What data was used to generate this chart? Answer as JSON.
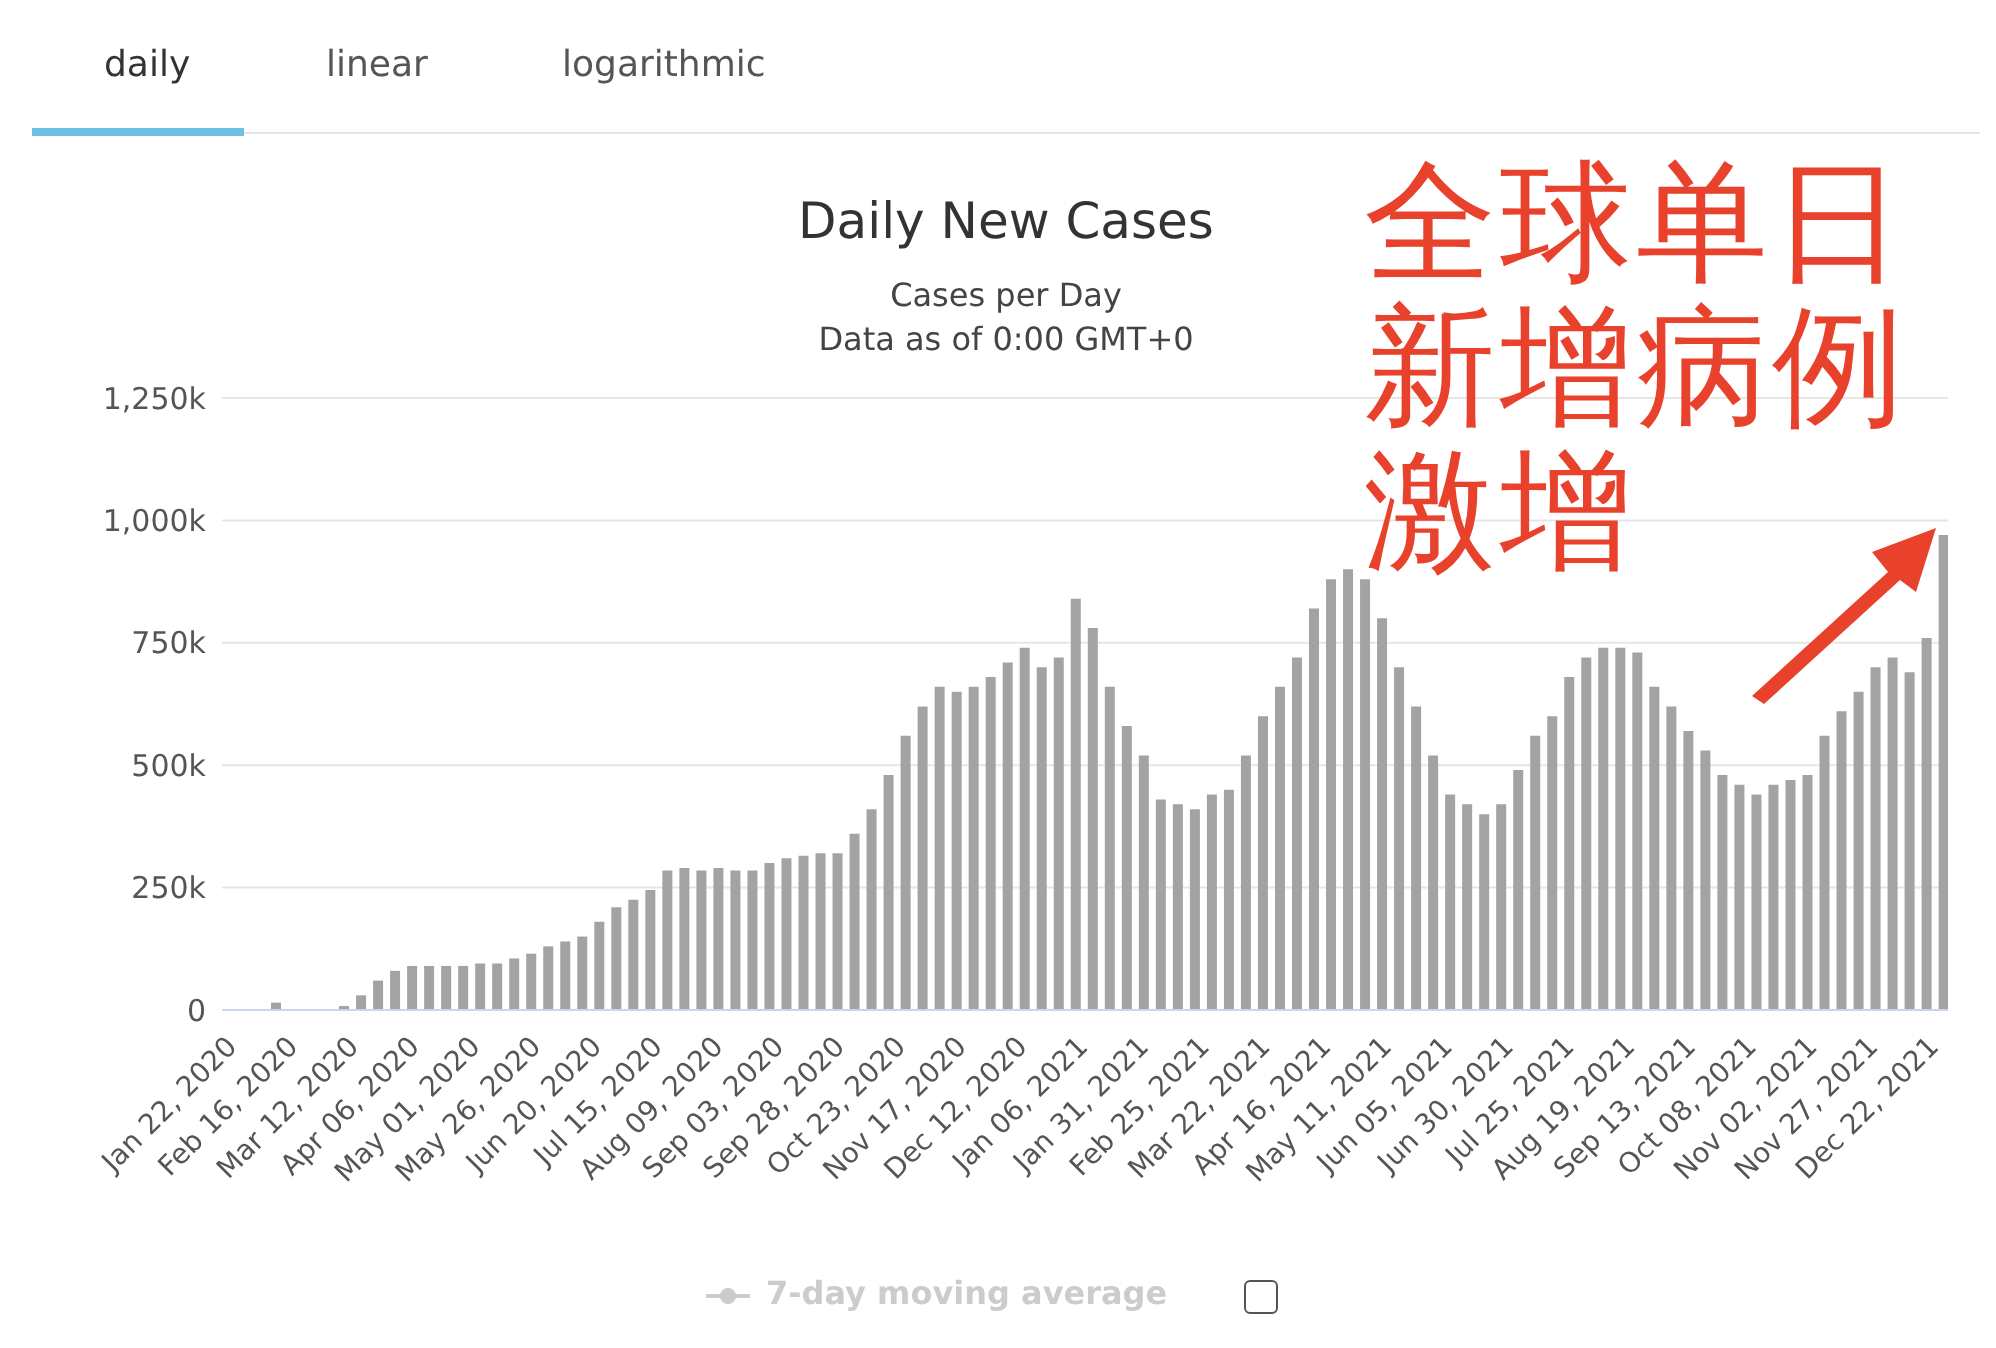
{
  "chart_data": {
    "type": "bar",
    "title": "Daily New Cases",
    "subtitle": "Cases per Day\nData as of 0:00 GMT+0",
    "annotations": [
      "daily",
      "linear",
      "logarithmic",
      "7-day moving average",
      "全球单日新增病例激增"
    ],
    "x": [
      "2020-01-22",
      "2020-01-29",
      "2020-02-05",
      "2020-02-12",
      "2020-02-19",
      "2020-02-26",
      "2020-03-04",
      "2020-03-11",
      "2020-03-18",
      "2020-03-25",
      "2020-04-01",
      "2020-04-08",
      "2020-04-15",
      "2020-04-22",
      "2020-04-29",
      "2020-05-06",
      "2020-05-13",
      "2020-05-20",
      "2020-05-27",
      "2020-06-03",
      "2020-06-10",
      "2020-06-17",
      "2020-06-24",
      "2020-07-01",
      "2020-07-08",
      "2020-07-15",
      "2020-07-22",
      "2020-07-29",
      "2020-08-05",
      "2020-08-12",
      "2020-08-19",
      "2020-08-26",
      "2020-09-02",
      "2020-09-09",
      "2020-09-16",
      "2020-09-23",
      "2020-09-30",
      "2020-10-07",
      "2020-10-14",
      "2020-10-21",
      "2020-10-28",
      "2020-11-04",
      "2020-11-11",
      "2020-11-18",
      "2020-11-25",
      "2020-12-02",
      "2020-12-09",
      "2020-12-16",
      "2020-12-23",
      "2020-12-30",
      "2021-01-06",
      "2021-01-13",
      "2021-01-20",
      "2021-01-27",
      "2021-02-03",
      "2021-02-10",
      "2021-02-17",
      "2021-02-24",
      "2021-03-03",
      "2021-03-10",
      "2021-03-17",
      "2021-03-24",
      "2021-03-31",
      "2021-04-07",
      "2021-04-14",
      "2021-04-21",
      "2021-04-28",
      "2021-05-05",
      "2021-05-12",
      "2021-05-19",
      "2021-05-26",
      "2021-06-02",
      "2021-06-09",
      "2021-06-16",
      "2021-06-23",
      "2021-06-30",
      "2021-07-07",
      "2021-07-14",
      "2021-07-21",
      "2021-07-28",
      "2021-08-04",
      "2021-08-11",
      "2021-08-18",
      "2021-08-25",
      "2021-09-01",
      "2021-09-08",
      "2021-09-15",
      "2021-09-22",
      "2021-09-29",
      "2021-10-06",
      "2021-10-13",
      "2021-10-20",
      "2021-10-27",
      "2021-11-03",
      "2021-11-10",
      "2021-11-17",
      "2021-11-24",
      "2021-12-01",
      "2021-12-08",
      "2021-12-15",
      "2021-12-22",
      "2021-12-29"
    ],
    "values": [
      1000,
      2000,
      null,
      15000,
      2000,
      2000,
      null,
      8000,
      30000,
      60000,
      80000,
      90000,
      90000,
      90000,
      90000,
      95000,
      95000,
      105000,
      115000,
      130000,
      140000,
      150000,
      180000,
      210000,
      225000,
      245000,
      285000,
      290000,
      285000,
      290000,
      285000,
      285000,
      300000,
      310000,
      315000,
      320000,
      320000,
      360000,
      410000,
      480000,
      560000,
      620000,
      660000,
      650000,
      660000,
      680000,
      710000,
      740000,
      700000,
      720000,
      840000,
      780000,
      660000,
      580000,
      520000,
      430000,
      420000,
      410000,
      440000,
      450000,
      520000,
      600000,
      660000,
      720000,
      820000,
      880000,
      900000,
      880000,
      800000,
      700000,
      620000,
      520000,
      440000,
      420000,
      400000,
      420000,
      490000,
      560000,
      600000,
      680000,
      720000,
      740000,
      740000,
      730000,
      660000,
      620000,
      570000,
      530000,
      480000,
      460000,
      440000,
      460000,
      470000,
      480000,
      560000,
      610000,
      650000,
      700000,
      720000,
      690000,
      760000,
      970000
    ],
    "color": "#a3a3a3",
    "xlim": [
      "2020-01-21",
      "2021-12-31"
    ],
    "xticks": [
      {
        "value": "2020-01-22",
        "label": "Jan 22, 2020"
      },
      {
        "value": "2020-02-16",
        "label": "Feb 16, 2020"
      },
      {
        "value": "2020-03-12",
        "label": "Mar 12, 2020"
      },
      {
        "value": "2020-04-06",
        "label": "Apr 06, 2020"
      },
      {
        "value": "2020-05-01",
        "label": "May 01, 2020"
      },
      {
        "value": "2020-05-26",
        "label": "May 26, 2020"
      },
      {
        "value": "2020-06-20",
        "label": "Jun 20, 2020"
      },
      {
        "value": "2020-07-15",
        "label": "Jul 15, 2020"
      },
      {
        "value": "2020-08-09",
        "label": "Aug 09, 2020"
      },
      {
        "value": "2020-09-03",
        "label": "Sep 03, 2020"
      },
      {
        "value": "2020-09-28",
        "label": "Sep 28, 2020"
      },
      {
        "value": "2020-10-23",
        "label": "Oct 23, 2020"
      },
      {
        "value": "2020-11-17",
        "label": "Nov 17, 2020"
      },
      {
        "value": "2020-12-12",
        "label": "Dec 12, 2020"
      },
      {
        "value": "2021-01-06",
        "label": "Jan 06, 2021"
      },
      {
        "value": "2021-01-31",
        "label": "Jan 31, 2021"
      },
      {
        "value": "2021-02-25",
        "label": "Feb 25, 2021"
      },
      {
        "value": "2021-03-22",
        "label": "Mar 22, 2021"
      },
      {
        "value": "2021-04-16",
        "label": "Apr 16, 2021"
      },
      {
        "value": "2021-05-11",
        "label": "May 11, 2021"
      },
      {
        "value": "2021-06-05",
        "label": "Jun 05, 2021"
      },
      {
        "value": "2021-06-30",
        "label": "Jun 30, 2021"
      },
      {
        "value": "2021-07-25",
        "label": "Jul 25, 2021"
      },
      {
        "value": "2021-08-19",
        "label": "Aug 19, 2021"
      },
      {
        "value": "2021-09-13",
        "label": "Sep 13, 2021"
      },
      {
        "value": "2021-10-08",
        "label": "Oct 08, 2021"
      },
      {
        "value": "2021-11-02",
        "label": "Nov 02, 2021"
      },
      {
        "value": "2021-11-27",
        "label": "Nov 27, 2021"
      },
      {
        "value": "2021-12-22",
        "label": "Dec 22, 2021"
      }
    ],
    "ylim": [
      0,
      1250000
    ],
    "yticks": [
      0,
      {
        "value": 250000,
        "label": "250k"
      },
      {
        "value": 500000,
        "label": "500k"
      },
      {
        "value": 750000,
        "label": "750k"
      },
      {
        "value": 1000000,
        "label": "1,000k"
      },
      {
        "value": 1250000,
        "label": "1,250k"
      }
    ],
    "grid": "y"
  }
}
